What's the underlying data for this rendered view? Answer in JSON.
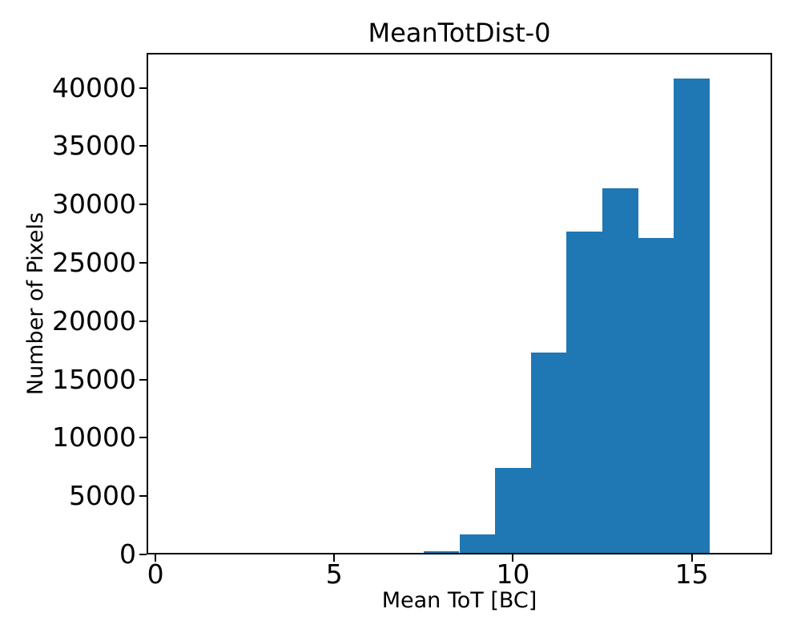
{
  "chart_data": {
    "type": "bar",
    "subtype": "histogram",
    "title": "MeanTotDist-0",
    "xlabel": "Mean ToT [BC]",
    "ylabel": "Number of Pixels",
    "bin_edges": [
      7.5,
      8.5,
      9.5,
      10.5,
      11.5,
      12.5,
      13.5,
      14.5,
      15.5
    ],
    "counts": [
      250,
      1750,
      7400,
      17300,
      27700,
      31400,
      27100,
      40800
    ],
    "bar_color": "#1f77b4",
    "axis_color": "#000000",
    "background_color": "#ffffff",
    "xlim": [
      -0.25,
      17.25
    ],
    "ylim": [
      0,
      43000
    ],
    "xticks": [
      0,
      5,
      10,
      15
    ],
    "yticks": [
      0,
      5000,
      10000,
      15000,
      20000,
      25000,
      30000,
      35000,
      40000
    ],
    "grid": false,
    "legend": null
  }
}
